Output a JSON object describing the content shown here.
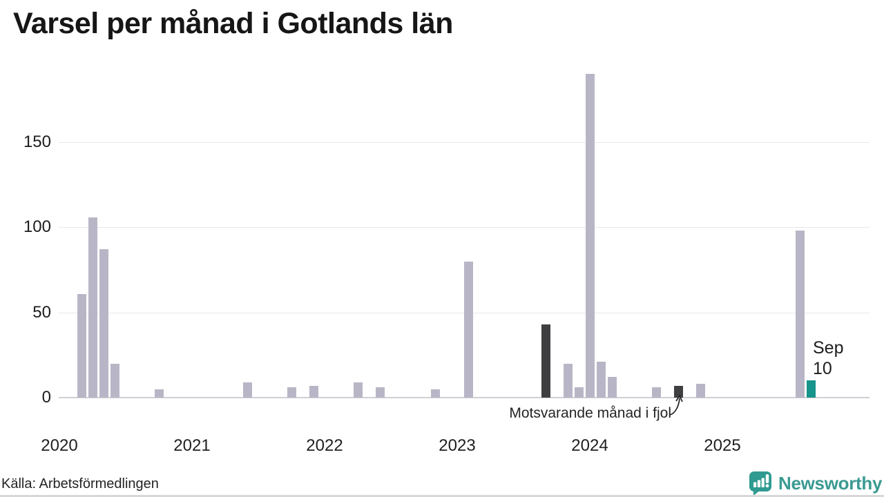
{
  "title": "Varsel per månad i Gotlands län",
  "source": "Källa: Arbetsförmedlingen",
  "branding": {
    "name": "Newsworthy",
    "icon": "speech-bubble-bar-chart-icon"
  },
  "annotation": {
    "text": "Motsvarande månad i fjol",
    "target_month": "2024-09"
  },
  "latest_label": {
    "line1": "Sep",
    "line2": "10"
  },
  "colors": {
    "bar_default": "#b8b6c6",
    "bar_compare": "#3f3f41",
    "bar_latest": "#17948b",
    "gridline": "#e8e8ed",
    "axis_line": "#cfcfd6",
    "brand_teal": "#2f9a90",
    "text": "#1a1a1a"
  },
  "chart_data": {
    "type": "bar",
    "title": "Varsel per månad i Gotlands län",
    "xlabel": "",
    "ylabel": "",
    "ylim": [
      0,
      195
    ],
    "yticks": [
      0,
      50,
      100,
      150
    ],
    "grid": "horizontal",
    "x_start": "2020-01",
    "x_end": "2025-09",
    "year_labels": [
      "2020",
      "2021",
      "2022",
      "2023",
      "2024",
      "2025"
    ],
    "points": [
      {
        "month": "2020-03",
        "value": 61,
        "kind": "default"
      },
      {
        "month": "2020-04",
        "value": 106,
        "kind": "default"
      },
      {
        "month": "2020-05",
        "value": 87,
        "kind": "default"
      },
      {
        "month": "2020-06",
        "value": 20,
        "kind": "default"
      },
      {
        "month": "2020-10",
        "value": 5,
        "kind": "default"
      },
      {
        "month": "2021-06",
        "value": 9,
        "kind": "default"
      },
      {
        "month": "2021-10",
        "value": 6,
        "kind": "default"
      },
      {
        "month": "2021-12",
        "value": 7,
        "kind": "default"
      },
      {
        "month": "2022-04",
        "value": 9,
        "kind": "default"
      },
      {
        "month": "2022-06",
        "value": 6,
        "kind": "default"
      },
      {
        "month": "2022-11",
        "value": 5,
        "kind": "default"
      },
      {
        "month": "2023-02",
        "value": 80,
        "kind": "default"
      },
      {
        "month": "2023-09",
        "value": 43,
        "kind": "compare"
      },
      {
        "month": "2023-11",
        "value": 20,
        "kind": "default"
      },
      {
        "month": "2023-12",
        "value": 6,
        "kind": "default"
      },
      {
        "month": "2024-01",
        "value": 190,
        "kind": "default"
      },
      {
        "month": "2024-02",
        "value": 21,
        "kind": "default"
      },
      {
        "month": "2024-03",
        "value": 12,
        "kind": "default"
      },
      {
        "month": "2024-07",
        "value": 6,
        "kind": "default"
      },
      {
        "month": "2024-09",
        "value": 7,
        "kind": "compare"
      },
      {
        "month": "2024-11",
        "value": 8,
        "kind": "default"
      },
      {
        "month": "2025-08",
        "value": 98,
        "kind": "default"
      },
      {
        "month": "2025-09",
        "value": 10,
        "kind": "latest"
      }
    ]
  }
}
